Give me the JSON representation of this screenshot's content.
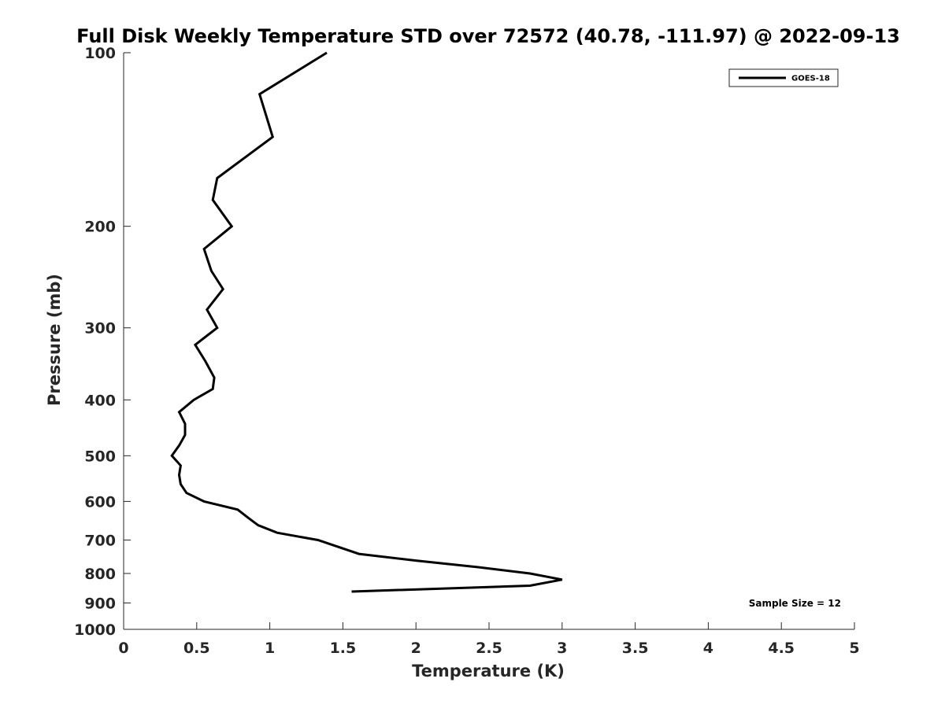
{
  "chart_data": {
    "type": "line",
    "title": "Full Disk Weekly Temperature STD over 72572 (40.78, -111.97) @ 2022-09-13",
    "xlabel": "Temperature (K)",
    "ylabel": "Pressure (mb)",
    "xlim": [
      0,
      5
    ],
    "ylim": [
      100,
      1000
    ],
    "y_scale": "log",
    "y_reversed": true,
    "x_ticks": [
      0,
      0.5,
      1,
      1.5,
      2,
      2.5,
      3,
      3.5,
      4,
      4.5,
      5
    ],
    "x_tick_labels": [
      "0",
      "0.5",
      "1",
      "1.5",
      "2",
      "2.5",
      "3",
      "3.5",
      "4",
      "4.5",
      "5"
    ],
    "y_ticks": [
      100,
      200,
      300,
      400,
      500,
      600,
      700,
      800,
      900,
      1000
    ],
    "y_tick_labels": [
      "100",
      "200",
      "300",
      "400",
      "500",
      "600",
      "700",
      "800",
      "900",
      "1000"
    ],
    "grid": false,
    "legend_position": "top-right",
    "series": [
      {
        "name": "GOES-18",
        "color": "#000000",
        "points": [
          {
            "x": 1.39,
            "y": 100
          },
          {
            "x": 0.93,
            "y": 118
          },
          {
            "x": 1.02,
            "y": 140
          },
          {
            "x": 0.64,
            "y": 165
          },
          {
            "x": 0.61,
            "y": 180
          },
          {
            "x": 0.74,
            "y": 200
          },
          {
            "x": 0.55,
            "y": 219
          },
          {
            "x": 0.6,
            "y": 239
          },
          {
            "x": 0.68,
            "y": 257
          },
          {
            "x": 0.57,
            "y": 279
          },
          {
            "x": 0.64,
            "y": 300
          },
          {
            "x": 0.49,
            "y": 321
          },
          {
            "x": 0.56,
            "y": 343
          },
          {
            "x": 0.62,
            "y": 366
          },
          {
            "x": 0.61,
            "y": 383
          },
          {
            "x": 0.48,
            "y": 400
          },
          {
            "x": 0.38,
            "y": 420
          },
          {
            "x": 0.42,
            "y": 440
          },
          {
            "x": 0.42,
            "y": 460
          },
          {
            "x": 0.38,
            "y": 480
          },
          {
            "x": 0.33,
            "y": 500
          },
          {
            "x": 0.39,
            "y": 520
          },
          {
            "x": 0.38,
            "y": 540
          },
          {
            "x": 0.39,
            "y": 560
          },
          {
            "x": 0.43,
            "y": 580
          },
          {
            "x": 0.55,
            "y": 600
          },
          {
            "x": 0.78,
            "y": 620
          },
          {
            "x": 0.85,
            "y": 640
          },
          {
            "x": 0.92,
            "y": 660
          },
          {
            "x": 1.05,
            "y": 680
          },
          {
            "x": 1.33,
            "y": 700
          },
          {
            "x": 1.61,
            "y": 740
          },
          {
            "x": 2.0,
            "y": 760
          },
          {
            "x": 2.42,
            "y": 780
          },
          {
            "x": 2.78,
            "y": 800
          },
          {
            "x": 3.0,
            "y": 820
          },
          {
            "x": 2.78,
            "y": 840
          },
          {
            "x": 1.56,
            "y": 860
          }
        ]
      }
    ],
    "annotations": [
      {
        "text": "Sample Size = 12"
      }
    ]
  }
}
